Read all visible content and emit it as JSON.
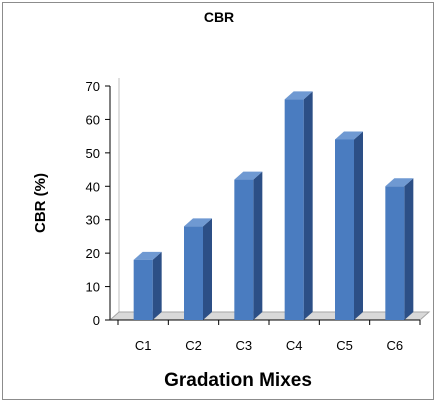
{
  "chart_data": {
    "type": "bar",
    "title": "CBR",
    "xlabel": "Gradation Mixes",
    "ylabel": "CBR (%)",
    "categories": [
      "C1",
      "C2",
      "C3",
      "C4",
      "C5",
      "C6"
    ],
    "values": [
      18,
      28,
      42,
      66,
      54,
      40
    ],
    "ylim": [
      0,
      70
    ],
    "yticks": [
      "0",
      "10",
      "20",
      "30",
      "40",
      "50",
      "60",
      "70"
    ],
    "grid": false,
    "legend": "none",
    "style": "3d-column",
    "colors": {
      "bar_front": "#4a7cc0",
      "bar_side": "#2c4f86",
      "bar_top": "#6f99d2",
      "floor": "#d9d9d9"
    }
  }
}
